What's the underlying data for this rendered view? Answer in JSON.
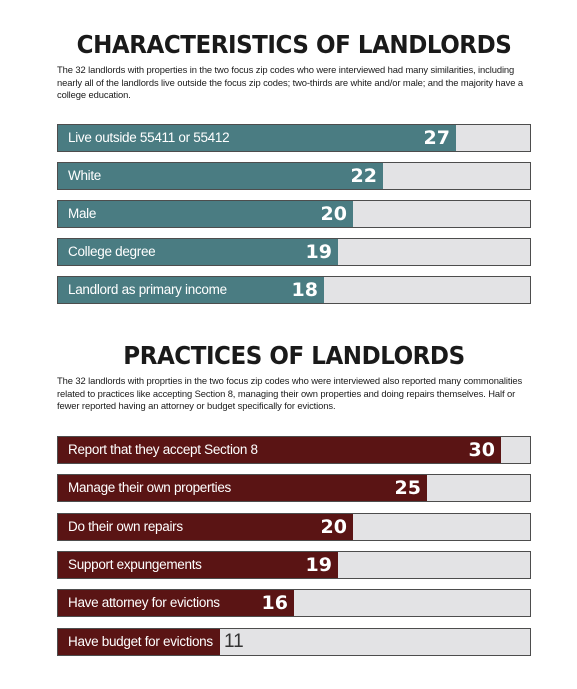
{
  "characteristics": {
    "title": "CHARACTERISTICS OF LANDLORDS",
    "intro": "The 32 landlords with properties in the two focus zip codes who were interviewed had many similarities, including nearly all of the landlords live outside the focus zip codes; two-thirds are white and/or male; and the majority have a college education.",
    "color": "#4a7c82"
  },
  "practices": {
    "title": "PRACTICES OF LANDLORDS",
    "intro": "The 32 landlords with proprties in the two focus zip codes who were interviewed also reported many commonalities related to practices like accepting Section 8, managing their own properties and doing repairs themselves. Half or fewer reported having an attorney or budget specifically for evictions.",
    "color": "#5a1414"
  },
  "chart_data": [
    {
      "type": "bar",
      "orientation": "horizontal",
      "title": "CHARACTERISTICS OF LANDLORDS",
      "categories": [
        "Live outside 55411 or 55412",
        "White",
        "Male",
        "College degree",
        "Landlord as primary income"
      ],
      "values": [
        27,
        22,
        20,
        19,
        18
      ],
      "xlim": [
        0,
        32
      ]
    },
    {
      "type": "bar",
      "orientation": "horizontal",
      "title": "PRACTICES OF LANDLORDS",
      "categories": [
        "Report that they accept Section 8",
        "Manage their own properties",
        "Do their own repairs",
        "Support expungements",
        "Have attorney for evictions",
        "Have budget for evictions"
      ],
      "values": [
        30,
        25,
        20,
        19,
        16,
        11
      ],
      "xlim": [
        0,
        32
      ]
    }
  ]
}
